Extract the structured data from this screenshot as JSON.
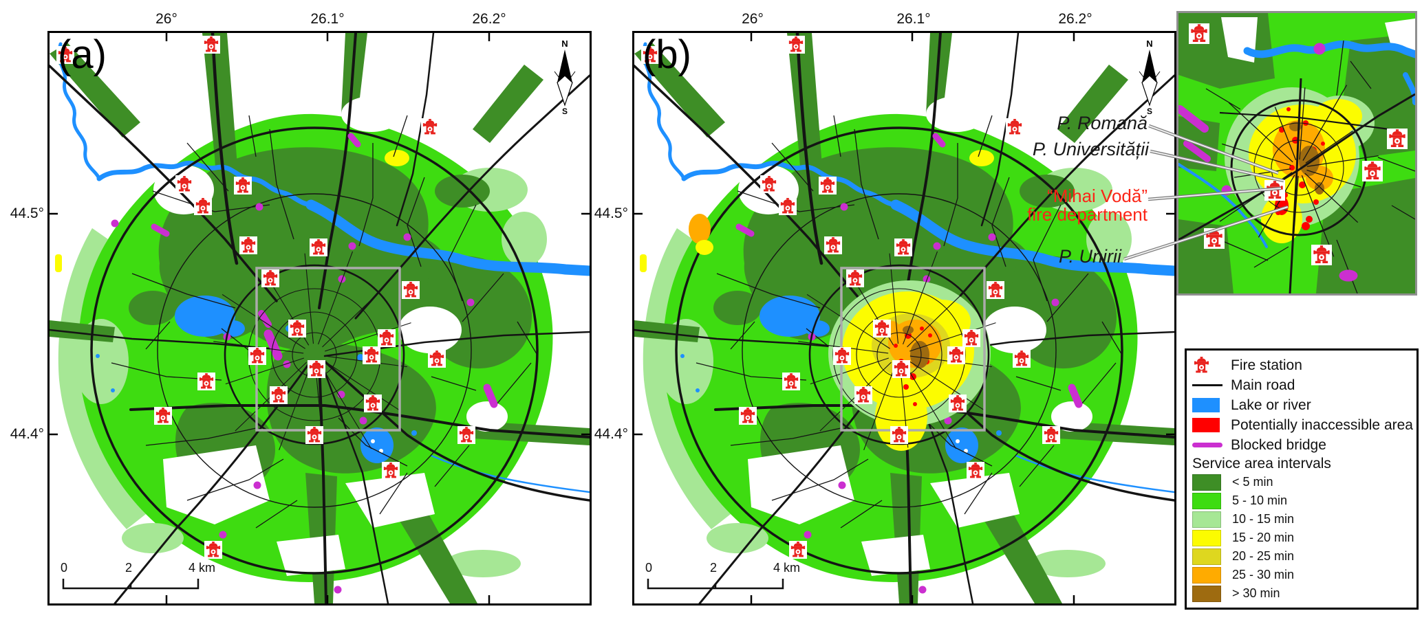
{
  "figure": {
    "panel_a": {
      "label": "(a)",
      "x_ticks": [
        "26°",
        "26.1°",
        "26.2°"
      ],
      "y_ticks": [
        "44.5°",
        "44.4°"
      ],
      "compass": {
        "n": "N",
        "s": "S"
      },
      "scalebar": {
        "zero": "0",
        "two": "2",
        "four": "4 km"
      }
    },
    "panel_b": {
      "label": "(b)",
      "x_ticks": [
        "26°",
        "26.1°",
        "26.2°"
      ],
      "y_ticks": [
        "44.5°",
        "44.4°"
      ],
      "compass": {
        "n": "N",
        "s": "S"
      },
      "scalebar": {
        "zero": "0",
        "two": "2",
        "four": "4 km"
      },
      "annotations": {
        "piata_romana": "P. Romană",
        "piata_universitatii": "P. Universității",
        "mihai_voda_line1": "“Mihai Vodă”",
        "mihai_voda_line2": "fire department",
        "piata_unirii": "P. Unirii"
      }
    },
    "legend": {
      "items": [
        {
          "label": "Fire station",
          "symbol": "fire-station-icon",
          "color": "#E8211D"
        },
        {
          "label": "Main road",
          "symbol": "black-line",
          "color": "#111111"
        },
        {
          "label": "Lake or river",
          "symbol": "swatch",
          "color": "#1E90FF"
        },
        {
          "label": "Potentially inaccessible area",
          "symbol": "swatch",
          "color": "#FF0000"
        },
        {
          "label": "Blocked bridge",
          "symbol": "magenta-line",
          "color": "#CB2FD0"
        }
      ],
      "section_title": "Service area intervals",
      "intervals": [
        {
          "label": "< 5 min",
          "color": "#3E8E26"
        },
        {
          "label": "5 - 10 min",
          "color": "#3EDC11"
        },
        {
          "label": "10 - 15 min",
          "color": "#A6E795"
        },
        {
          "label": "15 - 20 min",
          "color": "#FCFC00"
        },
        {
          "label": "20 - 25 min",
          "color": "#DED71F"
        },
        {
          "label": "25 - 30 min",
          "color": "#FFAB00"
        },
        {
          "label": "> 30 min",
          "color": "#9E6B10"
        }
      ]
    }
  }
}
